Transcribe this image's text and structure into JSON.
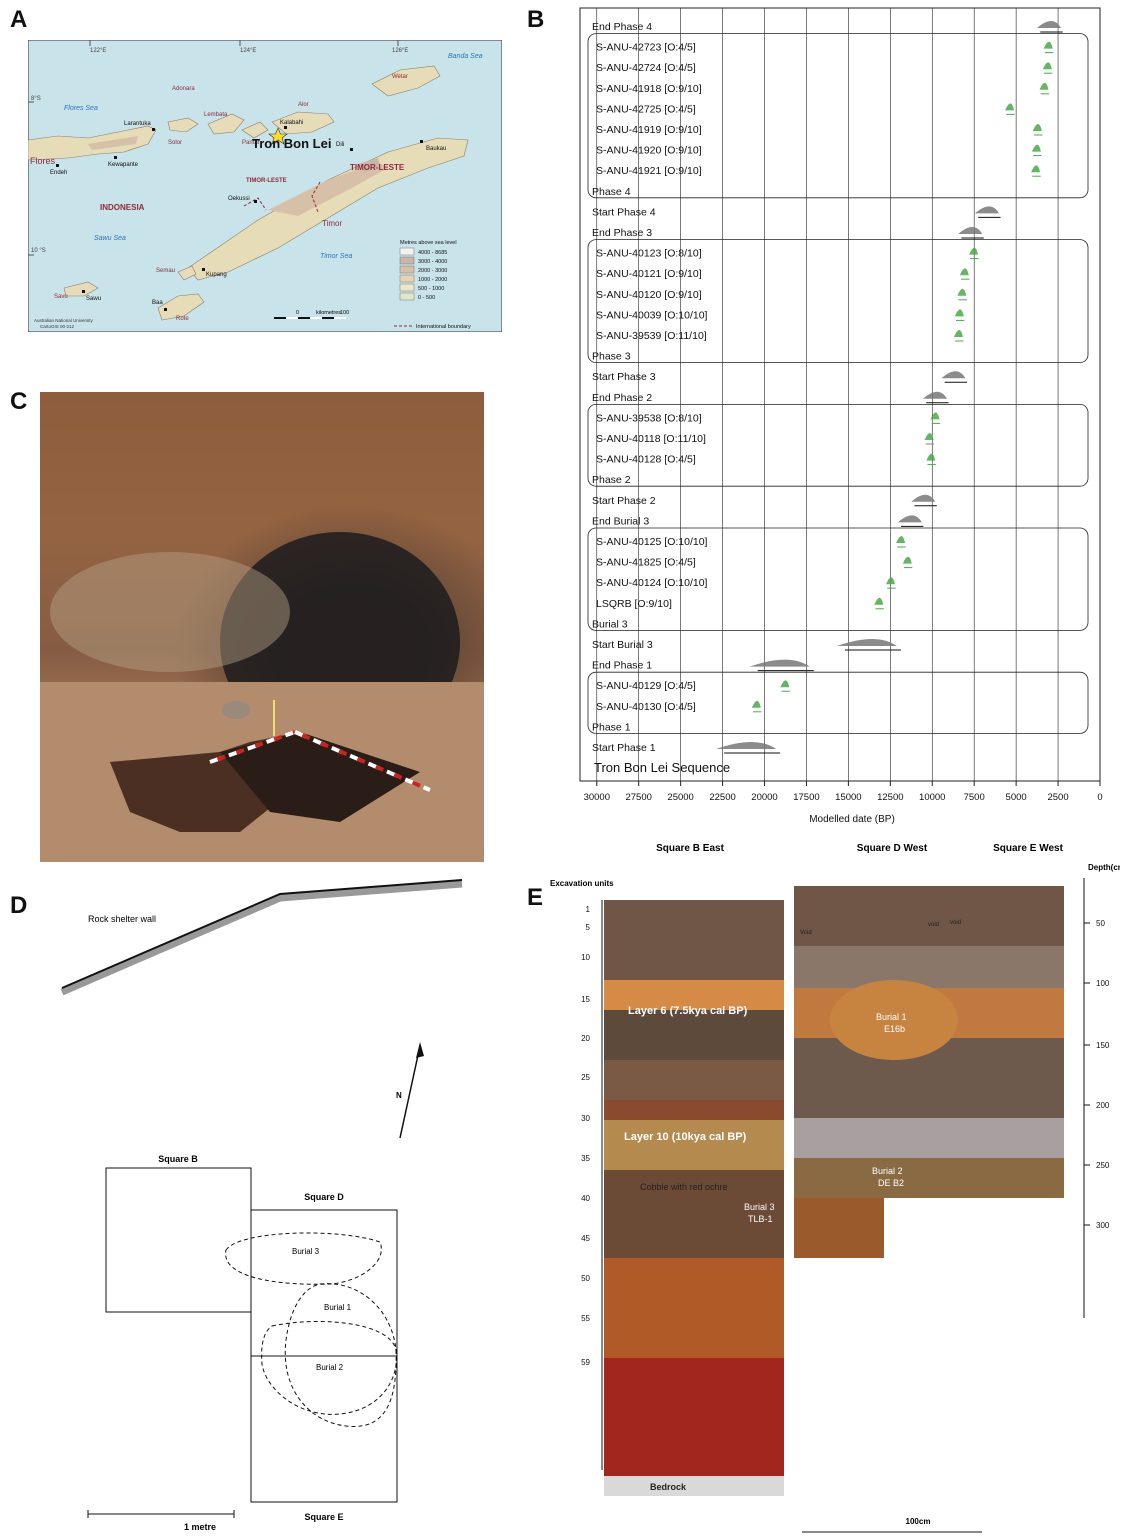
{
  "panel_labels": {
    "a": "A",
    "b": "B",
    "c": "C",
    "d": "D",
    "e": "E"
  },
  "map": {
    "lon_ticks": [
      "122°E",
      "124°E",
      "126°E"
    ],
    "lat_ticks": [
      "8°S",
      "10 °S"
    ],
    "seas": [
      "Banda Sea",
      "Flores Sea",
      "Sawu Sea",
      "Timor Sea"
    ],
    "islands": [
      "Flores",
      "Adonara",
      "Lembata",
      "Alor",
      "Wetar",
      "Pantar",
      "Solor",
      "Timor",
      "Semau",
      "Rote",
      "Savu"
    ],
    "towns": [
      "Larantuka",
      "Kalabahi",
      "Dili",
      "Baukau",
      "Endeh",
      "Kewapante",
      "Oekussi",
      "Kupang",
      "Baa",
      "Sawu"
    ],
    "site": "Tron Bon Lei",
    "countries": [
      "INDONESIA",
      "TIMOR-LESTE",
      "TIMOR-LESTE"
    ],
    "legend_title": "Metres above sea level",
    "legend": [
      {
        "label": "4000 - 8685",
        "color": "#f4f1ee"
      },
      {
        "label": "3000 - 4000",
        "color": "#c9b6a6"
      },
      {
        "label": "2000 - 3000",
        "color": "#d7c0a8"
      },
      {
        "label": "1000 - 2000",
        "color": "#e6d3b6"
      },
      {
        "label": "500 - 1000",
        "color": "#efe6c7"
      },
      {
        "label": "0 - 500",
        "color": "#dde8c7"
      }
    ],
    "scale_label": "kilometres",
    "scale_ticks": [
      "0",
      "100"
    ],
    "boundary_label": "International boundary",
    "credit": [
      "Australian National University",
      "CartoGIS 00-212"
    ]
  },
  "chart_data": {
    "type": "table",
    "title": "Tron Bon Lei Sequence",
    "xlabel": "Modelled date (BP)",
    "x_ticks": [
      "30000",
      "27500",
      "25000",
      "22500",
      "20000",
      "17500",
      "15000",
      "12500",
      "10000",
      "7500",
      "5000",
      "2500",
      "0"
    ],
    "xlim": [
      31000,
      0
    ],
    "rows": [
      {
        "label": "End Phase 4",
        "type": "boundary",
        "date": 2800
      },
      {
        "label": "S-ANU-42723 [O:4/5]",
        "type": "date",
        "date": 3000
      },
      {
        "label": "S-ANU-42724 [O:4/5]",
        "type": "date",
        "date": 3050
      },
      {
        "label": "S-ANU-41918 [O:9/10]",
        "type": "date",
        "date": 3250
      },
      {
        "label": "S-ANU-42725 [O:4/5]",
        "type": "date",
        "date": 5300
      },
      {
        "label": "S-ANU-41919 [O:9/10]",
        "type": "date",
        "date": 3650
      },
      {
        "label": "S-ANU-41920 [O:9/10]",
        "type": "date",
        "date": 3700
      },
      {
        "label": "S-ANU-41921 [O:9/10]",
        "type": "date",
        "date": 3750
      },
      {
        "label": "Phase 4",
        "type": "phase"
      },
      {
        "label": "Start Phase 4",
        "type": "boundary",
        "date": 6500
      },
      {
        "label": "End Phase 3",
        "type": "boundary",
        "date": 7500
      },
      {
        "label": "S-ANU-40123 [O:8/10]",
        "type": "date",
        "date": 7450
      },
      {
        "label": "S-ANU-40121 [O:9/10]",
        "type": "date",
        "date": 8000
      },
      {
        "label": "S-ANU-40120 [O:9/10]",
        "type": "date",
        "date": 8150
      },
      {
        "label": "S-ANU-40039 [O:10/10]",
        "type": "date",
        "date": 8300
      },
      {
        "label": "S-ANU-39539 [O:11/10]",
        "type": "date",
        "date": 8350
      },
      {
        "label": "Phase 3",
        "type": "phase"
      },
      {
        "label": "Start Phase 3",
        "type": "boundary",
        "date": 8500
      },
      {
        "label": "End Phase 2",
        "type": "boundary",
        "date": 9600
      },
      {
        "label": "S-ANU-39538 [O:8/10]",
        "type": "date",
        "date": 9750
      },
      {
        "label": "S-ANU-40118 [O:11/10]",
        "type": "date",
        "date": 10100
      },
      {
        "label": "S-ANU-40128 [O:4/5]",
        "type": "date",
        "date": 10000
      },
      {
        "label": "Phase 2",
        "type": "phase"
      },
      {
        "label": "Start Phase 2",
        "type": "boundary",
        "date": 10300
      },
      {
        "label": "End Burial 3",
        "type": "boundary",
        "date": 11100
      },
      {
        "label": "S-ANU-40125 [O:10/10]",
        "type": "date",
        "date": 11800
      },
      {
        "label": "S-ANU-41825 [O:4/5]",
        "type": "date",
        "date": 11400
      },
      {
        "label": "S-ANU-40124 [O:10/10]",
        "type": "date",
        "date": 12400
      },
      {
        "label": "LSQRB [O:9/10]",
        "type": "date",
        "date": 13100
      },
      {
        "label": "Burial 3",
        "type": "phase"
      },
      {
        "label": "Start Burial 3",
        "type": "boundary",
        "date": 13300
      },
      {
        "label": "End Phase 1",
        "type": "boundary",
        "date": 18500
      },
      {
        "label": "S-ANU-40129 [O:4/5]",
        "type": "date",
        "date": 18700
      },
      {
        "label": "S-ANU-40130 [O:4/5]",
        "type": "date",
        "date": 20400
      },
      {
        "label": "Phase 1",
        "type": "phase"
      },
      {
        "label": "Start Phase 1",
        "type": "boundary",
        "date": 20500
      }
    ]
  },
  "plan": {
    "wall_label": "Rock shelter wall",
    "north": "N",
    "square_b": "Square B",
    "square_d": "Square D",
    "square_e": "Square E",
    "burials": [
      "Burial 3",
      "Burial 1",
      "Burial 2"
    ],
    "scale": "1 metre"
  },
  "section": {
    "headers": [
      "Square B East",
      "Square D West",
      "Square E West"
    ],
    "units_label": "Excavation units",
    "units": [
      "1",
      "5",
      "10",
      "15",
      "20",
      "25",
      "30",
      "35",
      "40",
      "45",
      "50",
      "55",
      "59"
    ],
    "depth_label": "Depth(cm)",
    "depths": [
      "50",
      "100",
      "150",
      "200",
      "250",
      "300"
    ],
    "labels": [
      "Layer 6 (7.5kya cal BP)",
      "Layer 10 (10kya cal BP)",
      "Cobble with red ochre",
      "Burial 3",
      "TLB-1",
      "Burial 1",
      "E16b",
      "Burial 2",
      "DE B2",
      "Bedrock",
      "Void",
      "void",
      "void"
    ],
    "scale": "100cm"
  }
}
